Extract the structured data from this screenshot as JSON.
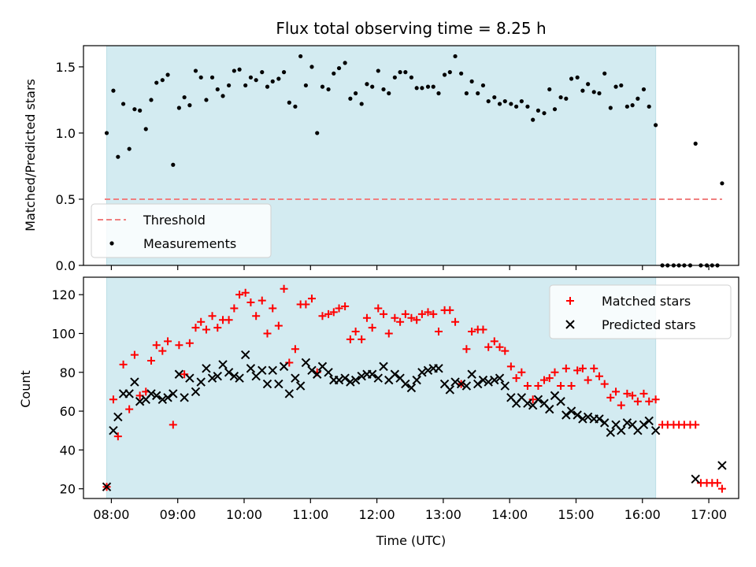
{
  "chart_data": [
    {
      "type": "scatter",
      "title": "Flux total observing time = 8.25 h",
      "ylabel": "Matched/Predicted stars",
      "xlabel": "",
      "xlim": [
        7.58,
        17.45
      ],
      "ylim": [
        0,
        1.66
      ],
      "yticks": [
        0.0,
        0.5,
        1.0,
        1.5
      ],
      "ytick_labels": [
        "0.0",
        "0.5",
        "1.0",
        "1.5"
      ],
      "observing_window": [
        7.93,
        16.2
      ],
      "window_color": "#d3ebf1",
      "threshold": {
        "name": "Threshold",
        "value": 0.5,
        "x_range": [
          7.9,
          17.2
        ],
        "color": "#f08080",
        "style": "dashed"
      },
      "legend": {
        "placement": "lower-left",
        "entries": [
          "Threshold",
          "Measurements"
        ]
      },
      "series": [
        {
          "name": "Measurements",
          "color": "#000000",
          "marker": "dot",
          "x": [
            7.93,
            8.03,
            8.1,
            8.18,
            8.27,
            8.35,
            8.43,
            8.52,
            8.6,
            8.68,
            8.77,
            8.85,
            8.93,
            9.02,
            9.1,
            9.18,
            9.27,
            9.35,
            9.43,
            9.52,
            9.6,
            9.68,
            9.77,
            9.85,
            9.93,
            10.02,
            10.1,
            10.18,
            10.27,
            10.35,
            10.43,
            10.52,
            10.6,
            10.68,
            10.77,
            10.85,
            10.93,
            11.02,
            11.1,
            11.18,
            11.27,
            11.35,
            11.43,
            11.52,
            11.6,
            11.68,
            11.77,
            11.85,
            11.93,
            12.02,
            12.1,
            12.18,
            12.27,
            12.35,
            12.43,
            12.52,
            12.6,
            12.68,
            12.77,
            12.85,
            12.93,
            13.02,
            13.1,
            13.18,
            13.27,
            13.35,
            13.43,
            13.52,
            13.6,
            13.68,
            13.77,
            13.85,
            13.93,
            14.02,
            14.1,
            14.18,
            14.27,
            14.35,
            14.43,
            14.52,
            14.6,
            14.68,
            14.77,
            14.85,
            14.93,
            15.02,
            15.1,
            15.18,
            15.27,
            15.35,
            15.43,
            15.52,
            15.6,
            15.68,
            15.77,
            15.85,
            15.93,
            16.02,
            16.1,
            16.2,
            16.3,
            16.38,
            16.47,
            16.55,
            16.63,
            16.72,
            16.8,
            16.88,
            16.97,
            17.05,
            17.13,
            17.2
          ],
          "y": [
            1.0,
            1.32,
            0.82,
            1.22,
            0.88,
            1.18,
            1.17,
            1.03,
            1.25,
            1.38,
            1.4,
            1.44,
            0.76,
            1.19,
            1.27,
            1.21,
            1.47,
            1.42,
            1.25,
            1.42,
            1.33,
            1.28,
            1.36,
            1.47,
            1.48,
            1.36,
            1.42,
            1.4,
            1.46,
            1.35,
            1.39,
            1.41,
            1.46,
            1.23,
            1.2,
            1.58,
            1.36,
            1.5,
            1.0,
            1.35,
            1.33,
            1.45,
            1.49,
            1.53,
            1.26,
            1.3,
            1.22,
            1.37,
            1.35,
            1.47,
            1.33,
            1.3,
            1.42,
            1.46,
            1.46,
            1.42,
            1.34,
            1.34,
            1.35,
            1.35,
            1.3,
            1.44,
            1.46,
            1.58,
            1.45,
            1.3,
            1.39,
            1.3,
            1.36,
            1.24,
            1.27,
            1.22,
            1.24,
            1.22,
            1.2,
            1.24,
            1.2,
            1.1,
            1.17,
            1.15,
            1.33,
            1.18,
            1.27,
            1.26,
            1.41,
            1.42,
            1.32,
            1.37,
            1.31,
            1.3,
            1.45,
            1.19,
            1.35,
            1.36,
            1.2,
            1.21,
            1.26,
            1.33,
            1.2,
            1.06,
            0.0,
            0.0,
            0.0,
            0.0,
            0.0,
            0.0,
            0.92,
            0.0,
            0.0,
            0.0,
            0.0,
            0.62
          ]
        }
      ]
    },
    {
      "type": "scatter",
      "title": "",
      "ylabel": "Count",
      "xlabel": "Time (UTC)",
      "xlim": [
        7.58,
        17.45
      ],
      "ylim": [
        15,
        129
      ],
      "yticks": [
        20,
        40,
        60,
        80,
        100,
        120
      ],
      "ytick_labels": [
        "20",
        "40",
        "60",
        "80",
        "100",
        "120"
      ],
      "xticks": [
        8,
        9,
        10,
        11,
        12,
        13,
        14,
        15,
        16,
        17
      ],
      "xtick_labels": [
        "08:00",
        "09:00",
        "10:00",
        "11:00",
        "12:00",
        "13:00",
        "14:00",
        "15:00",
        "16:00",
        "17:00"
      ],
      "observing_window": [
        7.93,
        16.2
      ],
      "window_color": "#d3ebf1",
      "legend": {
        "placement": "upper-right",
        "entries": [
          "Matched stars",
          "Predicted stars"
        ]
      },
      "series": [
        {
          "name": "Matched stars",
          "color": "#ff0000",
          "marker": "plus",
          "x": [
            7.93,
            8.03,
            8.1,
            8.18,
            8.27,
            8.35,
            8.43,
            8.52,
            8.6,
            8.68,
            8.77,
            8.85,
            8.93,
            9.02,
            9.1,
            9.18,
            9.27,
            9.35,
            9.43,
            9.52,
            9.6,
            9.68,
            9.77,
            9.85,
            9.93,
            10.02,
            10.1,
            10.18,
            10.27,
            10.35,
            10.43,
            10.52,
            10.6,
            10.68,
            10.77,
            10.85,
            10.93,
            11.02,
            11.1,
            11.18,
            11.27,
            11.35,
            11.43,
            11.52,
            11.6,
            11.68,
            11.77,
            11.85,
            11.93,
            12.02,
            12.1,
            12.18,
            12.27,
            12.35,
            12.43,
            12.52,
            12.6,
            12.68,
            12.77,
            12.85,
            12.93,
            13.02,
            13.1,
            13.18,
            13.27,
            13.35,
            13.43,
            13.52,
            13.6,
            13.68,
            13.77,
            13.85,
            13.93,
            14.02,
            14.1,
            14.18,
            14.27,
            14.35,
            14.43,
            14.52,
            14.6,
            14.68,
            14.77,
            14.85,
            14.93,
            15.02,
            15.1,
            15.18,
            15.27,
            15.35,
            15.43,
            15.52,
            15.6,
            15.68,
            15.77,
            15.85,
            15.93,
            16.02,
            16.1,
            16.2,
            16.3,
            16.38,
            16.47,
            16.55,
            16.63,
            16.72,
            16.8,
            16.88,
            16.97,
            17.05,
            17.13,
            17.2
          ],
          "y": [
            21,
            66,
            47,
            84,
            61,
            89,
            68,
            70,
            86,
            94,
            91,
            96,
            53,
            94,
            79,
            95,
            103,
            106,
            102,
            109,
            103,
            107,
            107,
            113,
            120,
            121,
            116,
            109,
            117,
            100,
            113,
            104,
            123,
            85,
            92,
            115,
            115,
            118,
            80,
            109,
            110,
            111,
            113,
            114,
            97,
            101,
            97,
            108,
            103,
            113,
            110,
            100,
            108,
            106,
            110,
            108,
            107,
            110,
            111,
            110,
            101,
            112,
            112,
            106,
            74,
            92,
            101,
            102,
            102,
            93,
            96,
            93,
            91,
            83,
            77,
            80,
            73,
            66,
            73,
            76,
            77,
            80,
            73,
            82,
            73,
            81,
            82,
            76,
            82,
            78,
            74,
            67,
            70,
            63,
            69,
            68,
            65,
            69,
            65,
            66,
            53,
            53,
            53,
            53,
            53,
            53,
            53,
            23,
            23,
            23,
            23,
            20
          ]
        },
        {
          "name": "Predicted stars",
          "color": "#000000",
          "marker": "cross",
          "x": [
            7.93,
            8.03,
            8.1,
            8.18,
            8.27,
            8.35,
            8.43,
            8.52,
            8.6,
            8.68,
            8.77,
            8.85,
            8.93,
            9.02,
            9.1,
            9.18,
            9.27,
            9.35,
            9.43,
            9.52,
            9.6,
            9.68,
            9.77,
            9.85,
            9.93,
            10.02,
            10.1,
            10.18,
            10.27,
            10.35,
            10.43,
            10.52,
            10.6,
            10.68,
            10.77,
            10.85,
            10.93,
            11.02,
            11.1,
            11.18,
            11.27,
            11.35,
            11.43,
            11.52,
            11.6,
            11.68,
            11.77,
            11.85,
            11.93,
            12.02,
            12.1,
            12.18,
            12.27,
            12.35,
            12.43,
            12.52,
            12.6,
            12.68,
            12.77,
            12.85,
            12.93,
            13.02,
            13.1,
            13.18,
            13.27,
            13.35,
            13.43,
            13.52,
            13.6,
            13.68,
            13.77,
            13.85,
            13.93,
            14.02,
            14.1,
            14.18,
            14.27,
            14.35,
            14.43,
            14.52,
            14.6,
            14.68,
            14.77,
            14.85,
            14.93,
            15.02,
            15.1,
            15.18,
            15.27,
            15.35,
            15.43,
            15.52,
            15.6,
            15.68,
            15.77,
            15.85,
            15.93,
            16.02,
            16.1,
            16.2,
            16.8,
            17.2
          ],
          "y": [
            21,
            50,
            57,
            69,
            69,
            75,
            65,
            66,
            69,
            68,
            66,
            67,
            69,
            79,
            67,
            77,
            70,
            75,
            82,
            77,
            78,
            84,
            80,
            78,
            77,
            89,
            82,
            78,
            81,
            74,
            81,
            74,
            83,
            69,
            77,
            73,
            85,
            81,
            79,
            83,
            80,
            76,
            76,
            77,
            75,
            76,
            78,
            79,
            79,
            77,
            83,
            76,
            79,
            77,
            74,
            72,
            76,
            80,
            81,
            82,
            82,
            74,
            71,
            75,
            74,
            73,
            79,
            74,
            76,
            75,
            76,
            77,
            73,
            67,
            64,
            67,
            64,
            63,
            66,
            64,
            61,
            68,
            65,
            58,
            60,
            58,
            56,
            57,
            56,
            56,
            54,
            49,
            53,
            50,
            54,
            53,
            50,
            53,
            55,
            50,
            25,
            32
          ]
        }
      ]
    }
  ]
}
